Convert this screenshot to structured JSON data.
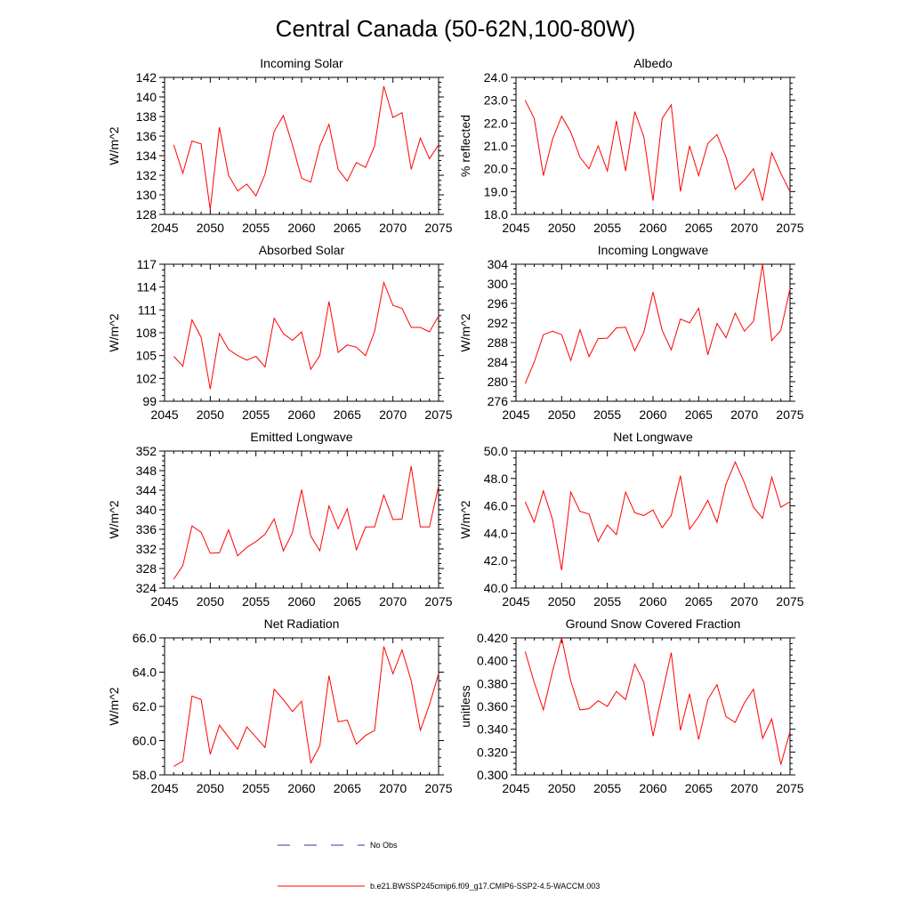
{
  "title": "Central Canada (50-62N,100-80W)",
  "legend": {
    "obs_label": "No Obs",
    "obs_color": "#3333aa",
    "model_label": "b.e21.BWSSP245cmip6.f09_g17.CMIP6-SSP2-4.5-WACCM.003",
    "model_color": "#ff0000"
  },
  "chart_data": [
    {
      "type": "line",
      "title": "Incoming Solar",
      "xlabel": "",
      "ylabel": "W/m^2",
      "xlim": [
        2045,
        2075
      ],
      "ylim": [
        128,
        142
      ],
      "x_ticks": [
        2045,
        2050,
        2055,
        2060,
        2065,
        2070,
        2075
      ],
      "x_tick_labels": [
        "2045",
        "2050",
        "2055",
        "2060",
        "2065",
        "2070",
        "2075"
      ],
      "y_ticks": [
        128,
        130,
        132,
        134,
        136,
        138,
        140,
        142
      ],
      "y_tick_labels": [
        "128",
        "130",
        "132",
        "134",
        "136",
        "138",
        "140",
        "142"
      ],
      "series": [
        {
          "name": "b.e21.BWSSP245cmip6.f09_g17.CMIP6-SSP2-4.5-WACCM.003",
          "x": [
            2046,
            2047,
            2048,
            2049,
            2050,
            2051,
            2052,
            2053,
            2054,
            2055,
            2056,
            2057,
            2058,
            2059,
            2060,
            2061,
            2062,
            2063,
            2064,
            2065,
            2066,
            2067,
            2068,
            2069,
            2070,
            2071,
            2072,
            2073,
            2074,
            2075
          ],
          "y": [
            135.1,
            132.2,
            135.5,
            135.2,
            128.5,
            136.9,
            132.0,
            130.4,
            131.1,
            129.9,
            132.1,
            136.5,
            138.1,
            135.1,
            131.7,
            131.3,
            135.0,
            137.2,
            132.6,
            131.4,
            133.3,
            132.8,
            135.0,
            141.1,
            137.9,
            138.4,
            132.6,
            135.8,
            133.7,
            135.1
          ]
        }
      ]
    },
    {
      "type": "line",
      "title": "Albedo",
      "xlabel": "",
      "ylabel": "% reflected",
      "xlim": [
        2045,
        2075
      ],
      "ylim": [
        18.0,
        24.0
      ],
      "x_ticks": [
        2045,
        2050,
        2055,
        2060,
        2065,
        2070,
        2075
      ],
      "x_tick_labels": [
        "2045",
        "2050",
        "2055",
        "2060",
        "2065",
        "2070",
        "2075"
      ],
      "y_ticks": [
        18,
        19,
        20,
        21,
        22,
        23,
        24
      ],
      "y_tick_labels": [
        "18.0",
        "19.0",
        "20.0",
        "21.0",
        "22.0",
        "23.0",
        "24.0"
      ],
      "series": [
        {
          "name": "b.e21.BWSSP245cmip6.f09_g17.CMIP6-SSP2-4.5-WACCM.003",
          "x": [
            2046,
            2047,
            2048,
            2049,
            2050,
            2051,
            2052,
            2053,
            2054,
            2055,
            2056,
            2057,
            2058,
            2059,
            2060,
            2061,
            2062,
            2063,
            2064,
            2065,
            2066,
            2067,
            2068,
            2069,
            2070,
            2071,
            2072,
            2073,
            2074,
            2075
          ],
          "y": [
            23.0,
            22.2,
            19.7,
            21.3,
            22.3,
            21.6,
            20.5,
            20.0,
            21.0,
            19.9,
            22.1,
            19.9,
            22.5,
            21.4,
            18.6,
            22.2,
            22.8,
            19.0,
            21.0,
            19.7,
            21.1,
            21.5,
            20.5,
            19.1,
            19.5,
            20.0,
            18.6,
            20.7,
            19.8,
            19.0
          ]
        }
      ]
    },
    {
      "type": "line",
      "title": "Absorbed Solar",
      "xlabel": "",
      "ylabel": "W/m^2",
      "xlim": [
        2045,
        2075
      ],
      "ylim": [
        99,
        117
      ],
      "x_ticks": [
        2045,
        2050,
        2055,
        2060,
        2065,
        2070,
        2075
      ],
      "x_tick_labels": [
        "2045",
        "2050",
        "2055",
        "2060",
        "2065",
        "2070",
        "2075"
      ],
      "y_ticks": [
        99,
        102,
        105,
        108,
        111,
        114,
        117
      ],
      "y_tick_labels": [
        "99",
        "102",
        "105",
        "108",
        "111",
        "114",
        "117"
      ],
      "series": [
        {
          "name": "b.e21.BWSSP245cmip6.f09_g17.CMIP6-SSP2-4.5-WACCM.003",
          "x": [
            2046,
            2047,
            2048,
            2049,
            2050,
            2051,
            2052,
            2053,
            2054,
            2055,
            2056,
            2057,
            2058,
            2059,
            2060,
            2061,
            2062,
            2063,
            2064,
            2065,
            2066,
            2067,
            2068,
            2069,
            2070,
            2071,
            2072,
            2073,
            2074,
            2075
          ],
          "y": [
            104.9,
            103.6,
            109.7,
            107.4,
            100.6,
            107.9,
            105.8,
            105.0,
            104.4,
            104.9,
            103.5,
            109.9,
            107.9,
            107.0,
            108.1,
            103.2,
            105.0,
            112.1,
            105.4,
            106.4,
            106.1,
            105.0,
            108.2,
            114.6,
            111.6,
            111.2,
            108.7,
            108.7,
            108.1,
            110.2
          ]
        }
      ]
    },
    {
      "type": "line",
      "title": "Incoming Longwave",
      "xlabel": "",
      "ylabel": "W/m^2",
      "xlim": [
        2045,
        2075
      ],
      "ylim": [
        276,
        304
      ],
      "x_ticks": [
        2045,
        2050,
        2055,
        2060,
        2065,
        2070,
        2075
      ],
      "x_tick_labels": [
        "2045",
        "2050",
        "2055",
        "2060",
        "2065",
        "2070",
        "2075"
      ],
      "y_ticks": [
        276,
        280,
        284,
        288,
        292,
        296,
        300,
        304
      ],
      "y_tick_labels": [
        "276",
        "280",
        "284",
        "288",
        "292",
        "296",
        "300",
        "304"
      ],
      "series": [
        {
          "name": "b.e21.BWSSP245cmip6.f09_g17.CMIP6-SSP2-4.5-WACCM.003",
          "x": [
            2046,
            2047,
            2048,
            2049,
            2050,
            2051,
            2052,
            2053,
            2054,
            2055,
            2056,
            2057,
            2058,
            2059,
            2060,
            2061,
            2062,
            2063,
            2064,
            2065,
            2066,
            2067,
            2068,
            2069,
            2070,
            2071,
            2072,
            2073,
            2074,
            2075
          ],
          "y": [
            279.6,
            284.0,
            289.6,
            290.3,
            289.6,
            284.3,
            290.6,
            285.1,
            288.8,
            288.9,
            291.0,
            291.1,
            286.3,
            290.1,
            298.3,
            290.5,
            286.5,
            292.8,
            292.0,
            295.0,
            285.5,
            291.9,
            289.0,
            294.0,
            290.3,
            292.3,
            304.0,
            288.4,
            290.5,
            299.0
          ]
        }
      ]
    },
    {
      "type": "line",
      "title": "Emitted Longwave",
      "xlabel": "",
      "ylabel": "W/m^2",
      "xlim": [
        2045,
        2075
      ],
      "ylim": [
        324,
        352
      ],
      "x_ticks": [
        2045,
        2050,
        2055,
        2060,
        2065,
        2070,
        2075
      ],
      "x_tick_labels": [
        "2045",
        "2050",
        "2055",
        "2060",
        "2065",
        "2070",
        "2075"
      ],
      "y_ticks": [
        324,
        328,
        332,
        336,
        340,
        344,
        348,
        352
      ],
      "y_tick_labels": [
        "324",
        "328",
        "332",
        "336",
        "340",
        "344",
        "348",
        "352"
      ],
      "series": [
        {
          "name": "b.e21.BWSSP245cmip6.f09_g17.CMIP6-SSP2-4.5-WACCM.003",
          "x": [
            2046,
            2047,
            2048,
            2049,
            2050,
            2051,
            2052,
            2053,
            2054,
            2055,
            2056,
            2057,
            2058,
            2059,
            2060,
            2061,
            2062,
            2063,
            2064,
            2065,
            2066,
            2067,
            2068,
            2069,
            2070,
            2071,
            2072,
            2073,
            2074,
            2075
          ],
          "y": [
            325.8,
            328.6,
            336.7,
            335.4,
            331.1,
            331.2,
            335.9,
            330.6,
            332.3,
            333.5,
            335.0,
            338.1,
            331.6,
            335.3,
            344.1,
            334.6,
            331.6,
            340.8,
            336.1,
            340.2,
            331.8,
            336.5,
            336.5,
            343.0,
            338.0,
            338.1,
            348.9,
            336.5,
            336.5,
            344.9
          ]
        }
      ]
    },
    {
      "type": "line",
      "title": "Net Longwave",
      "xlabel": "",
      "ylabel": "W/m^2",
      "xlim": [
        2045,
        2075
      ],
      "ylim": [
        40.0,
        50.0
      ],
      "x_ticks": [
        2045,
        2050,
        2055,
        2060,
        2065,
        2070,
        2075
      ],
      "x_tick_labels": [
        "2045",
        "2050",
        "2055",
        "2060",
        "2065",
        "2070",
        "2075"
      ],
      "y_ticks": [
        40,
        42,
        44,
        46,
        48,
        50
      ],
      "y_tick_labels": [
        "40.0",
        "42.0",
        "44.0",
        "46.0",
        "48.0",
        "50.0"
      ],
      "series": [
        {
          "name": "b.e21.BWSSP245cmip6.f09_g17.CMIP6-SSP2-4.5-WACCM.003",
          "x": [
            2046,
            2047,
            2048,
            2049,
            2050,
            2051,
            2052,
            2053,
            2054,
            2055,
            2056,
            2057,
            2058,
            2059,
            2060,
            2061,
            2062,
            2063,
            2064,
            2065,
            2066,
            2067,
            2068,
            2069,
            2070,
            2071,
            2072,
            2073,
            2074,
            2075
          ],
          "y": [
            46.3,
            44.8,
            47.1,
            45.0,
            41.3,
            47.0,
            45.6,
            45.4,
            43.4,
            44.6,
            43.9,
            47.0,
            45.5,
            45.3,
            45.7,
            44.4,
            45.3,
            48.2,
            44.3,
            45.2,
            46.4,
            44.8,
            47.6,
            49.2,
            47.7,
            45.9,
            45.1,
            48.1,
            45.9,
            46.3
          ]
        }
      ]
    },
    {
      "type": "line",
      "title": "Net Radiation",
      "xlabel": "",
      "ylabel": "W/m^2",
      "xlim": [
        2045,
        2075
      ],
      "ylim": [
        58.0,
        66.0
      ],
      "x_ticks": [
        2045,
        2050,
        2055,
        2060,
        2065,
        2070,
        2075
      ],
      "x_tick_labels": [
        "2045",
        "2050",
        "2055",
        "2060",
        "2065",
        "2070",
        "2075"
      ],
      "y_ticks": [
        58,
        60,
        62,
        64,
        66
      ],
      "y_tick_labels": [
        "58.0",
        "60.0",
        "62.0",
        "64.0",
        "66.0"
      ],
      "series": [
        {
          "name": "b.e21.BWSSP245cmip6.f09_g17.CMIP6-SSP2-4.5-WACCM.003",
          "x": [
            2046,
            2047,
            2048,
            2049,
            2050,
            2051,
            2052,
            2053,
            2054,
            2055,
            2056,
            2057,
            2058,
            2059,
            2060,
            2061,
            2062,
            2063,
            2064,
            2065,
            2066,
            2067,
            2068,
            2069,
            2070,
            2071,
            2072,
            2073,
            2074,
            2075
          ],
          "y": [
            58.5,
            58.8,
            62.6,
            62.4,
            59.2,
            60.9,
            60.2,
            59.5,
            60.8,
            60.2,
            59.6,
            63.0,
            62.4,
            61.7,
            62.3,
            58.7,
            59.7,
            63.8,
            61.1,
            61.2,
            59.8,
            60.3,
            60.6,
            65.5,
            63.9,
            65.3,
            63.5,
            60.6,
            62.1,
            63.9
          ]
        }
      ]
    },
    {
      "type": "line",
      "title": "Ground Snow Covered Fraction",
      "xlabel": "",
      "ylabel": "unitless",
      "xlim": [
        2045,
        2075
      ],
      "ylim": [
        0.3,
        0.42
      ],
      "x_ticks": [
        2045,
        2050,
        2055,
        2060,
        2065,
        2070,
        2075
      ],
      "x_tick_labels": [
        "2045",
        "2050",
        "2055",
        "2060",
        "2065",
        "2070",
        "2075"
      ],
      "y_ticks": [
        0.3,
        0.32,
        0.34,
        0.36,
        0.38,
        0.4,
        0.42
      ],
      "y_tick_labels": [
        "0.300",
        "0.320",
        "0.340",
        "0.360",
        "0.380",
        "0.400",
        "0.420"
      ],
      "series": [
        {
          "name": "b.e21.BWSSP245cmip6.f09_g17.CMIP6-SSP2-4.5-WACCM.003",
          "x": [
            2046,
            2047,
            2048,
            2049,
            2050,
            2051,
            2052,
            2053,
            2054,
            2055,
            2056,
            2057,
            2058,
            2059,
            2060,
            2061,
            2062,
            2063,
            2064,
            2065,
            2066,
            2067,
            2068,
            2069,
            2070,
            2071,
            2072,
            2073,
            2074,
            2075
          ],
          "y": [
            0.408,
            0.381,
            0.357,
            0.391,
            0.42,
            0.382,
            0.357,
            0.358,
            0.365,
            0.36,
            0.373,
            0.366,
            0.397,
            0.381,
            0.334,
            0.371,
            0.407,
            0.339,
            0.371,
            0.331,
            0.366,
            0.379,
            0.351,
            0.346,
            0.363,
            0.375,
            0.332,
            0.349,
            0.309,
            0.338
          ]
        }
      ]
    }
  ]
}
